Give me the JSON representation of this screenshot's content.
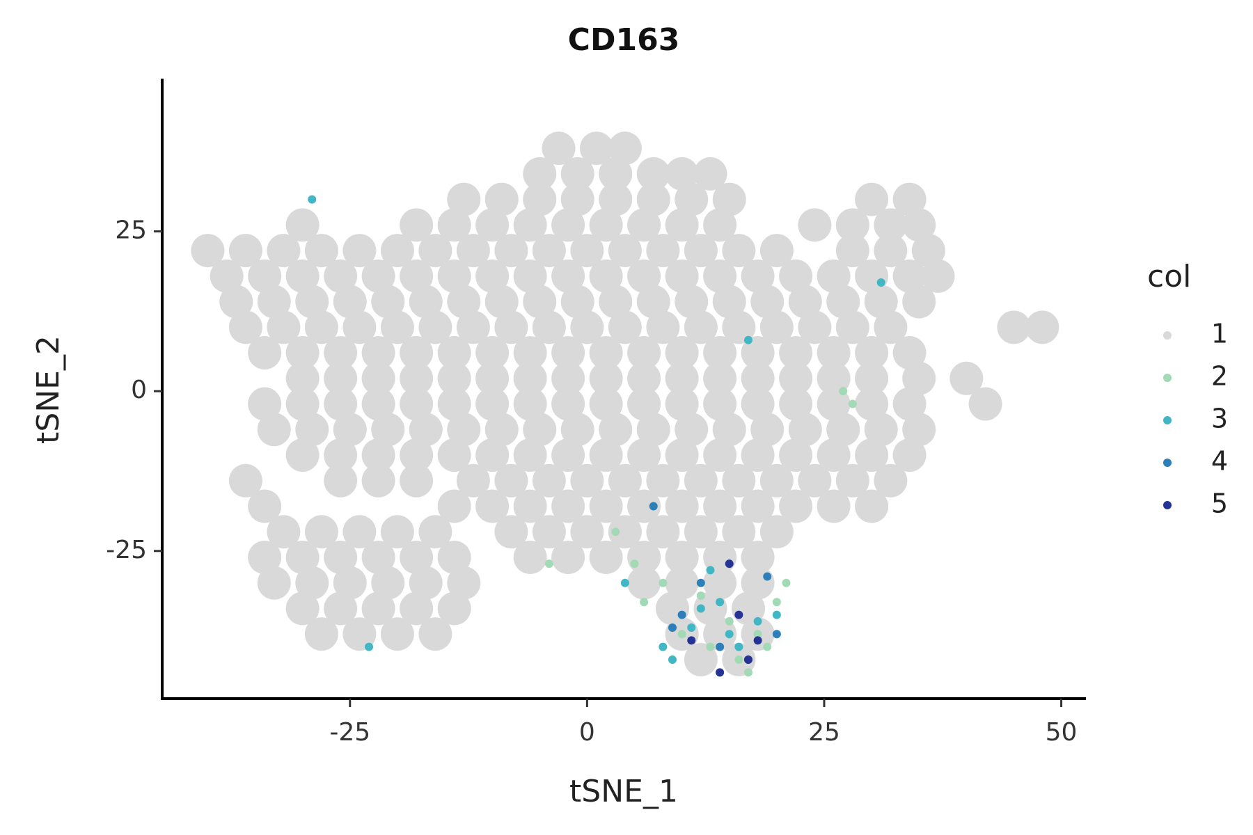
{
  "chart_data": {
    "type": "scatter",
    "title": "CD163",
    "x_label": "tSNE_1",
    "y_label": "tSNE_2",
    "legend_title": "col",
    "legend_position": "right",
    "grid": false,
    "xlim": [
      -44.8,
      52.6
    ],
    "ylim": [
      -48.1,
      48.9
    ],
    "xticks": [
      -25,
      0,
      25,
      50
    ],
    "yticks": [
      -25,
      0,
      25
    ],
    "series": [
      {
        "name": "1",
        "color": "#d9d9d9",
        "x": [
          -3,
          1,
          4,
          -5,
          -1,
          3,
          7,
          10,
          13,
          -13,
          -9,
          -5,
          -1,
          3,
          7,
          11,
          15,
          30,
          34,
          -30,
          -18,
          -14,
          -10,
          -6,
          -2,
          2,
          6,
          10,
          14,
          24,
          28,
          32,
          35,
          -40,
          -36,
          -32,
          -28,
          -24,
          -20,
          -16,
          -12,
          -8,
          -4,
          0,
          4,
          8,
          12,
          16,
          20,
          28,
          32,
          36,
          -38,
          -34,
          -30,
          -26,
          -22,
          -18,
          -14,
          -10,
          -6,
          -2,
          2,
          6,
          10,
          14,
          18,
          22,
          26,
          30,
          34,
          37,
          -37,
          -33,
          -29,
          -25,
          -21,
          -17,
          -13,
          -9,
          -5,
          -1,
          3,
          7,
          11,
          15,
          19,
          23,
          27,
          31,
          35,
          -36,
          -32,
          -28,
          -24,
          -20,
          -16,
          -12,
          -8,
          -4,
          0,
          4,
          8,
          12,
          16,
          20,
          24,
          28,
          32,
          45,
          48,
          -34,
          -30,
          -26,
          -22,
          -18,
          -14,
          -10,
          -6,
          -2,
          2,
          6,
          10,
          14,
          18,
          22,
          26,
          30,
          34,
          -30,
          -26,
          -22,
          -18,
          -14,
          -10,
          -6,
          -2,
          2,
          6,
          10,
          14,
          18,
          22,
          26,
          30,
          35,
          40,
          -34,
          -30,
          -26,
          -22,
          -18,
          -14,
          -10,
          -6,
          -2,
          2,
          6,
          10,
          14,
          18,
          22,
          26,
          30,
          34,
          42,
          -33,
          -29,
          -25,
          -21,
          -17,
          -13,
          -9,
          -5,
          -1,
          3,
          7,
          11,
          15,
          19,
          23,
          27,
          31,
          35,
          -30,
          -26,
          -22,
          -18,
          -14,
          -10,
          -6,
          -2,
          2,
          6,
          10,
          14,
          18,
          22,
          26,
          30,
          34,
          -36,
          -26,
          -22,
          -18,
          -12,
          -8,
          -4,
          0,
          4,
          8,
          12,
          16,
          20,
          24,
          28,
          32,
          -34,
          -14,
          -10,
          -6,
          -2,
          2,
          6,
          10,
          14,
          18,
          22,
          26,
          30,
          -32,
          -28,
          -24,
          -20,
          -16,
          -8,
          -4,
          0,
          4,
          8,
          12,
          16,
          20,
          -34,
          -30,
          -26,
          -22,
          -18,
          -14,
          -6,
          -2,
          2,
          6,
          10,
          14,
          18,
          -33,
          -29,
          -25,
          -21,
          -17,
          -13,
          6,
          10,
          14,
          18,
          -30,
          -26,
          -22,
          -18,
          -14,
          9,
          13,
          17,
          -28,
          -24,
          -20,
          -16,
          10,
          14,
          18,
          12,
          16
        ],
        "y": [
          38,
          38,
          38,
          34,
          34,
          34,
          34,
          34,
          34,
          30,
          30,
          30,
          30,
          30,
          30,
          30,
          30,
          30,
          30,
          26,
          26,
          26,
          26,
          26,
          26,
          26,
          26,
          26,
          26,
          26,
          26,
          26,
          26,
          22,
          22,
          22,
          22,
          22,
          22,
          22,
          22,
          22,
          22,
          22,
          22,
          22,
          22,
          22,
          22,
          22,
          22,
          22,
          18,
          18,
          18,
          18,
          18,
          18,
          18,
          18,
          18,
          18,
          18,
          18,
          18,
          18,
          18,
          18,
          18,
          18,
          18,
          18,
          14,
          14,
          14,
          14,
          14,
          14,
          14,
          14,
          14,
          14,
          14,
          14,
          14,
          14,
          14,
          14,
          14,
          14,
          14,
          10,
          10,
          10,
          10,
          10,
          10,
          10,
          10,
          10,
          10,
          10,
          10,
          10,
          10,
          10,
          10,
          10,
          10,
          10,
          10,
          6,
          6,
          6,
          6,
          6,
          6,
          6,
          6,
          6,
          6,
          6,
          6,
          6,
          6,
          6,
          6,
          6,
          6,
          2,
          2,
          2,
          2,
          2,
          2,
          2,
          2,
          2,
          2,
          2,
          2,
          2,
          2,
          2,
          2,
          2,
          2,
          -2,
          -2,
          -2,
          -2,
          -2,
          -2,
          -2,
          -2,
          -2,
          -2,
          -2,
          -2,
          -2,
          -2,
          -2,
          -2,
          -2,
          -2,
          -2,
          -6,
          -6,
          -6,
          -6,
          -6,
          -6,
          -6,
          -6,
          -6,
          -6,
          -6,
          -6,
          -6,
          -6,
          -6,
          -6,
          -6,
          -6,
          -10,
          -10,
          -10,
          -10,
          -10,
          -10,
          -10,
          -10,
          -10,
          -10,
          -10,
          -10,
          -10,
          -10,
          -10,
          -10,
          -10,
          -14,
          -14,
          -14,
          -14,
          -14,
          -14,
          -14,
          -14,
          -14,
          -14,
          -14,
          -14,
          -14,
          -14,
          -14,
          -14,
          -18,
          -18,
          -18,
          -18,
          -18,
          -18,
          -18,
          -18,
          -18,
          -18,
          -18,
          -18,
          -18,
          -22,
          -22,
          -22,
          -22,
          -22,
          -22,
          -22,
          -22,
          -22,
          -22,
          -22,
          -22,
          -22,
          -26,
          -26,
          -26,
          -26,
          -26,
          -26,
          -26,
          -26,
          -26,
          -26,
          -26,
          -26,
          -26,
          -30,
          -30,
          -30,
          -30,
          -30,
          -30,
          -30,
          -30,
          -30,
          -30,
          -34,
          -34,
          -34,
          -34,
          -34,
          -34,
          -34,
          -34,
          -38,
          -38,
          -38,
          -38,
          -38,
          -38,
          -38,
          -42,
          -42
        ]
      },
      {
        "name": "2",
        "color": "#a1dab4",
        "x": [
          5,
          8,
          12,
          15,
          18,
          20,
          16,
          10,
          13,
          19,
          3,
          28,
          27,
          -4,
          14,
          21,
          17,
          6
        ],
        "y": [
          -27,
          -30,
          -32,
          -36,
          -38,
          -33,
          -42,
          -38,
          -40,
          -40,
          -22,
          -2,
          0,
          -27,
          -44,
          -30,
          -44,
          -33
        ]
      },
      {
        "name": "3",
        "color": "#41b6c4",
        "x": [
          -29,
          31,
          17,
          9,
          12,
          15,
          18,
          13,
          8,
          16,
          20,
          11,
          -23,
          4,
          14
        ],
        "y": [
          30,
          17,
          8,
          -42,
          -34,
          -38,
          -36,
          -28,
          -40,
          -40,
          -35,
          -37,
          -40,
          -30,
          -33
        ]
      },
      {
        "name": "4",
        "color": "#2c7fb8",
        "x": [
          7,
          10,
          14,
          19,
          12,
          17,
          20,
          9
        ],
        "y": [
          -18,
          -35,
          -40,
          -29,
          -30,
          -42,
          -38,
          -37
        ]
      },
      {
        "name": "5",
        "color": "#253494",
        "x": [
          15,
          14,
          17,
          11,
          16,
          18
        ],
        "y": [
          -27,
          -44,
          -42,
          -39,
          -35,
          -39
        ]
      }
    ]
  }
}
